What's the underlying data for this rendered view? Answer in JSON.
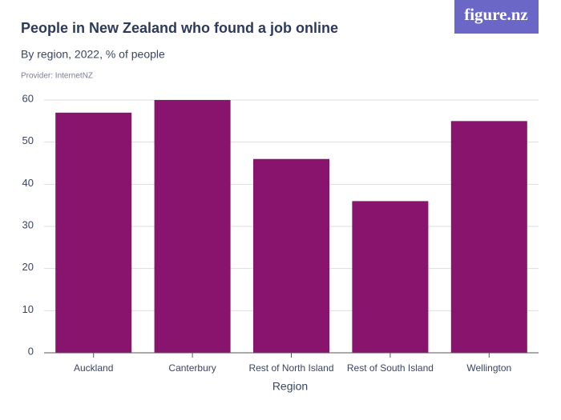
{
  "logo": "figure.nz",
  "chart_data": {
    "type": "bar",
    "title": "People in New Zealand who found a job online",
    "subtitle": "By region, 2022, % of people",
    "source": "Provider: InternetNZ",
    "x_label": "Region",
    "categories": [
      "Auckland",
      "Canterbury",
      "Rest of North Island",
      "Rest of South Island",
      "Wellington"
    ],
    "values": [
      57,
      60,
      46,
      36,
      55
    ],
    "color": "#89146e",
    "ylim": [
      0,
      60
    ],
    "yticks": [
      0,
      10,
      20,
      30,
      40,
      50,
      60
    ],
    "grid": true
  }
}
